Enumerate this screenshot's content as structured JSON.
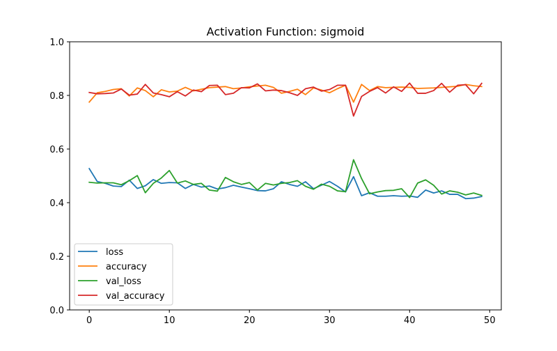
{
  "chart_data": {
    "type": "line",
    "title": "Activation Function: sigmoid",
    "xlabel": "",
    "ylabel": "",
    "xlim": [
      -2.45,
      51.45
    ],
    "ylim": [
      0.0,
      1.0
    ],
    "xticks": [
      0,
      10,
      20,
      30,
      40,
      50
    ],
    "yticks": [
      0.0,
      0.2,
      0.4,
      0.6,
      0.8,
      1.0
    ],
    "ytick_labels": [
      "0.0",
      "0.2",
      "0.4",
      "0.6",
      "0.8",
      "1.0"
    ],
    "grid": false,
    "legend_position": "lower-left",
    "x": [
      0,
      1,
      2,
      3,
      4,
      5,
      6,
      7,
      8,
      9,
      10,
      11,
      12,
      13,
      14,
      15,
      16,
      17,
      18,
      19,
      20,
      21,
      22,
      23,
      24,
      25,
      26,
      27,
      28,
      29,
      30,
      31,
      32,
      33,
      34,
      35,
      36,
      37,
      38,
      39,
      40,
      41,
      42,
      43,
      44,
      45,
      46,
      47,
      48,
      49
    ],
    "series": [
      {
        "name": "loss",
        "color": "#1f77b4",
        "values": [
          0.527,
          0.479,
          0.472,
          0.462,
          0.46,
          0.484,
          0.453,
          0.463,
          0.486,
          0.472,
          0.475,
          0.474,
          0.453,
          0.468,
          0.458,
          0.462,
          0.451,
          0.456,
          0.465,
          0.458,
          0.452,
          0.445,
          0.444,
          0.452,
          0.478,
          0.468,
          0.461,
          0.478,
          0.452,
          0.465,
          0.479,
          0.461,
          0.44,
          0.497,
          0.426,
          0.437,
          0.424,
          0.424,
          0.426,
          0.424,
          0.425,
          0.42,
          0.447,
          0.436,
          0.444,
          0.431,
          0.431,
          0.415,
          0.417,
          0.423
        ]
      },
      {
        "name": "accuracy",
        "color": "#ff7f0e",
        "values": [
          0.775,
          0.81,
          0.815,
          0.822,
          0.825,
          0.798,
          0.828,
          0.818,
          0.795,
          0.821,
          0.813,
          0.816,
          0.83,
          0.817,
          0.823,
          0.829,
          0.831,
          0.833,
          0.825,
          0.828,
          0.832,
          0.835,
          0.838,
          0.83,
          0.808,
          0.815,
          0.823,
          0.803,
          0.828,
          0.82,
          0.81,
          0.825,
          0.838,
          0.775,
          0.841,
          0.818,
          0.833,
          0.829,
          0.83,
          0.831,
          0.83,
          0.826,
          0.827,
          0.828,
          0.83,
          0.832,
          0.834,
          0.841,
          0.836,
          0.833
        ]
      },
      {
        "name": "val_loss",
        "color": "#2ca02c",
        "values": [
          0.476,
          0.473,
          0.474,
          0.474,
          0.467,
          0.482,
          0.501,
          0.437,
          0.472,
          0.492,
          0.52,
          0.473,
          0.481,
          0.468,
          0.472,
          0.447,
          0.443,
          0.494,
          0.478,
          0.468,
          0.475,
          0.447,
          0.472,
          0.466,
          0.472,
          0.475,
          0.482,
          0.461,
          0.45,
          0.469,
          0.461,
          0.444,
          0.441,
          0.56,
          0.49,
          0.433,
          0.44,
          0.445,
          0.446,
          0.452,
          0.419,
          0.473,
          0.485,
          0.465,
          0.432,
          0.444,
          0.439,
          0.429,
          0.436,
          0.427
        ]
      },
      {
        "name": "val_accuracy",
        "color": "#d62728",
        "values": [
          0.811,
          0.806,
          0.807,
          0.809,
          0.824,
          0.801,
          0.805,
          0.841,
          0.809,
          0.803,
          0.795,
          0.814,
          0.798,
          0.82,
          0.814,
          0.837,
          0.838,
          0.803,
          0.808,
          0.829,
          0.828,
          0.843,
          0.817,
          0.82,
          0.818,
          0.81,
          0.8,
          0.825,
          0.831,
          0.816,
          0.822,
          0.838,
          0.838,
          0.723,
          0.796,
          0.815,
          0.829,
          0.809,
          0.832,
          0.815,
          0.846,
          0.808,
          0.808,
          0.818,
          0.845,
          0.812,
          0.838,
          0.84,
          0.806,
          0.845
        ]
      }
    ]
  }
}
